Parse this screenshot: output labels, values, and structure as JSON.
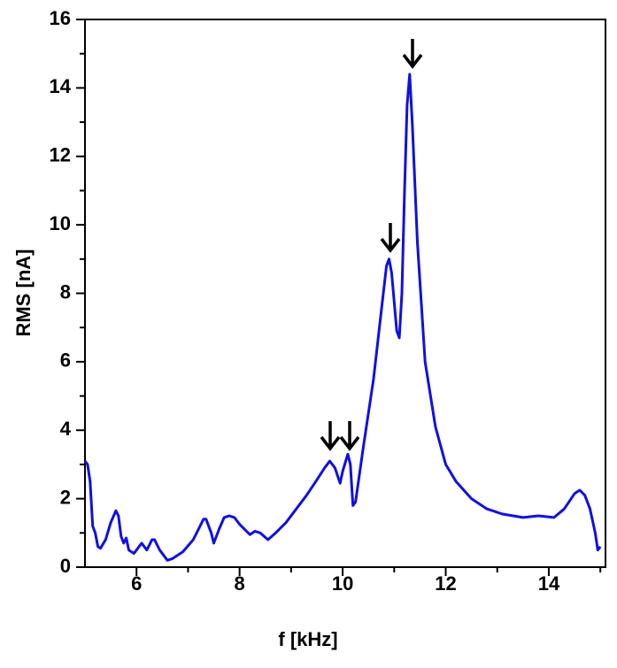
{
  "chart_data": {
    "type": "line",
    "x_label": "f [kHz]",
    "y_label": "RMS [nA]",
    "xlim": [
      5,
      15.1
    ],
    "ylim": [
      0,
      16
    ],
    "xticks": [
      6,
      8,
      10,
      12,
      14
    ],
    "yticks": [
      0,
      2,
      4,
      6,
      8,
      10,
      12,
      14,
      16
    ],
    "xticks_minor": [
      7,
      9,
      11,
      13,
      15
    ],
    "yticks_minor": [
      1,
      3,
      5,
      7,
      9,
      11,
      13,
      15
    ],
    "series": [
      {
        "color": "#1010e0",
        "x": [
          5.0,
          5.05,
          5.1,
          5.15,
          5.2,
          5.25,
          5.3,
          5.4,
          5.5,
          5.6,
          5.65,
          5.7,
          5.75,
          5.8,
          5.85,
          5.95,
          6.0,
          6.1,
          6.2,
          6.3,
          6.35,
          6.45,
          6.6,
          6.7,
          6.9,
          7.1,
          7.3,
          7.35,
          7.45,
          7.5,
          7.6,
          7.7,
          7.8,
          7.9,
          8.0,
          8.1,
          8.2,
          8.3,
          8.4,
          8.55,
          8.7,
          8.9,
          9.1,
          9.3,
          9.5,
          9.65,
          9.75,
          9.85,
          9.95,
          10.0,
          10.1,
          10.15,
          10.2,
          10.25,
          10.4,
          10.6,
          10.75,
          10.85,
          10.9,
          10.95,
          11.05,
          11.1,
          11.15,
          11.2,
          11.25,
          11.3,
          11.35,
          11.45,
          11.6,
          11.8,
          12.0,
          12.2,
          12.5,
          12.8,
          13.1,
          13.5,
          13.8,
          14.1,
          14.3,
          14.5,
          14.6,
          14.7,
          14.8,
          14.9,
          14.95,
          15.0
        ],
        "values": [
          3.1,
          3.0,
          2.5,
          1.2,
          1.0,
          0.6,
          0.55,
          0.8,
          1.3,
          1.65,
          1.5,
          0.9,
          0.7,
          0.85,
          0.5,
          0.4,
          0.5,
          0.7,
          0.5,
          0.8,
          0.8,
          0.5,
          0.2,
          0.25,
          0.45,
          0.8,
          1.4,
          1.4,
          1.0,
          0.7,
          1.1,
          1.45,
          1.5,
          1.45,
          1.25,
          1.1,
          0.95,
          1.05,
          1.0,
          0.8,
          1.0,
          1.3,
          1.7,
          2.1,
          2.55,
          2.9,
          3.1,
          2.9,
          2.45,
          2.8,
          3.3,
          3.0,
          1.8,
          1.9,
          3.5,
          5.5,
          7.5,
          8.8,
          9.0,
          8.6,
          6.9,
          6.7,
          8.0,
          11.0,
          13.5,
          14.4,
          13.0,
          9.5,
          6.0,
          4.1,
          3.0,
          2.5,
          2.0,
          1.7,
          1.55,
          1.45,
          1.5,
          1.45,
          1.7,
          2.15,
          2.25,
          2.1,
          1.7,
          1.0,
          0.5,
          0.6
        ]
      }
    ]
  }
}
